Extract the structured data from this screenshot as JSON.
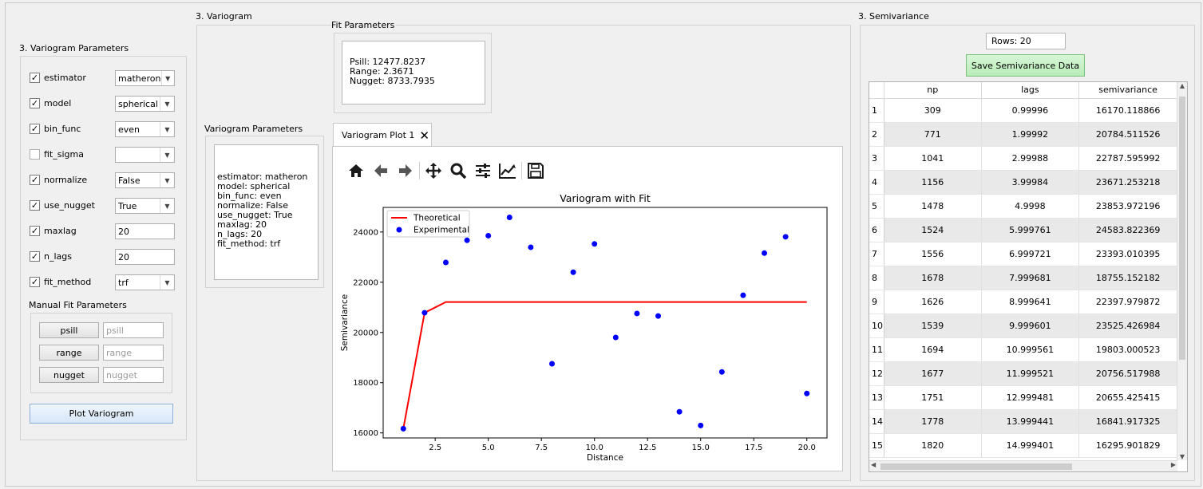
{
  "left_panel": {
    "title": "3. Variogram Parameters",
    "params": [
      {
        "label": "estimator",
        "checked": true,
        "type": "combo",
        "value": "matheron"
      },
      {
        "label": "model",
        "checked": true,
        "type": "combo",
        "value": "spherical"
      },
      {
        "label": "bin_func",
        "checked": true,
        "type": "combo",
        "value": "even"
      },
      {
        "label": "fit_sigma",
        "checked": false,
        "type": "combo",
        "value": ""
      },
      {
        "label": "normalize",
        "checked": true,
        "type": "combo",
        "value": "False"
      },
      {
        "label": "use_nugget",
        "checked": true,
        "type": "combo",
        "value": "True"
      },
      {
        "label": "maxlag",
        "checked": true,
        "type": "text",
        "value": "20"
      },
      {
        "label": "n_lags",
        "checked": true,
        "type": "text",
        "value": "20"
      },
      {
        "label": "fit_method",
        "checked": true,
        "type": "combo",
        "value": "trf"
      }
    ],
    "manual_title": "Manual Fit Parameters",
    "manual": [
      {
        "button": "psill",
        "placeholder": "psill"
      },
      {
        "button": "range",
        "placeholder": "range"
      },
      {
        "button": "nugget",
        "placeholder": "nugget"
      }
    ],
    "plot_button": "Plot Variogram",
    "check_mark": "✓"
  },
  "variogram": {
    "title": "3. Variogram",
    "fit_title": "Fit Parameters",
    "fit_text": "Psill: 12477.8237\nRange: 2.3671\nNugget: 8733.7935",
    "params_title": "Variogram Parameters",
    "params_text": "estimator: matheron\nmodel: spherical\nbin_func: even\nnormalize: False\nuse_nugget: True\nmaxlag: 20\nn_lags: 20\nfit_method: trf",
    "tab_label": "Variogram Plot 1",
    "toolbar": [
      "home-icon",
      "back-icon",
      "forward-icon",
      "pan-icon",
      "zoom-icon",
      "configure-subplots-icon",
      "edit-axis-icon",
      "save-icon"
    ]
  },
  "chart_data": {
    "type": "scatter",
    "title": "Variogram with Fit",
    "xlabel": "Distance",
    "ylabel": "Semivariance",
    "xlim": [
      0.05,
      20.95
    ],
    "ylim": [
      15800,
      24980
    ],
    "xticks": [
      "2.5",
      "5.0",
      "7.5",
      "10.0",
      "12.5",
      "15.0",
      "17.5",
      "20.0"
    ],
    "xtick_values": [
      2.5,
      5.0,
      7.5,
      10.0,
      12.5,
      15.0,
      17.5,
      20.0
    ],
    "yticks": [
      "16000",
      "18000",
      "20000",
      "22000",
      "24000"
    ],
    "ytick_values": [
      16000,
      18000,
      20000,
      22000,
      24000
    ],
    "legend_position": "top-left",
    "series": [
      {
        "name": "Theoretical",
        "kind": "line",
        "color": "#ff0000",
        "x": [
          1.0,
          2.0,
          3.0,
          20.0
        ],
        "y": [
          16170,
          20784,
          21211,
          21211
        ]
      },
      {
        "name": "Experimental",
        "kind": "scatter",
        "color": "#0000ff",
        "x": [
          1,
          2,
          3,
          4,
          5,
          6,
          7,
          8,
          9,
          10,
          11,
          12,
          13,
          14,
          15,
          16,
          17,
          18,
          19,
          20
        ],
        "y": [
          16170,
          20785,
          22788,
          23671,
          23854,
          24584,
          23393,
          18755,
          22398,
          23525,
          19803,
          20757,
          20655,
          16842,
          16296,
          18430,
          21480,
          23160,
          23810,
          17570
        ]
      }
    ]
  },
  "semivariance": {
    "title": "3. Semivariance",
    "rows_label": "Rows: 20",
    "save_button": "Save Semivariance Data",
    "columns": [
      "np",
      "lags",
      "semivariance"
    ],
    "rows": [
      [
        "1",
        "309",
        "0.99996",
        "16170.118866"
      ],
      [
        "2",
        "771",
        "1.99992",
        "20784.511526"
      ],
      [
        "3",
        "1041",
        "2.99988",
        "22787.595992"
      ],
      [
        "4",
        "1156",
        "3.99984",
        "23671.253218"
      ],
      [
        "5",
        "1478",
        "4.9998",
        "23853.972196"
      ],
      [
        "6",
        "1524",
        "5.999761",
        "24583.822369"
      ],
      [
        "7",
        "1556",
        "6.999721",
        "23393.010395"
      ],
      [
        "8",
        "1678",
        "7.999681",
        "18755.152182"
      ],
      [
        "9",
        "1626",
        "8.999641",
        "22397.979872"
      ],
      [
        "10",
        "1539",
        "9.999601",
        "23525.426984"
      ],
      [
        "11",
        "1694",
        "10.999561",
        "19803.000523"
      ],
      [
        "12",
        "1677",
        "11.999521",
        "20756.517988"
      ],
      [
        "13",
        "1751",
        "12.999481",
        "20655.425415"
      ],
      [
        "14",
        "1778",
        "13.999441",
        "16841.917325"
      ],
      [
        "15",
        "1820",
        "14.999401",
        "16295.901829"
      ]
    ]
  }
}
